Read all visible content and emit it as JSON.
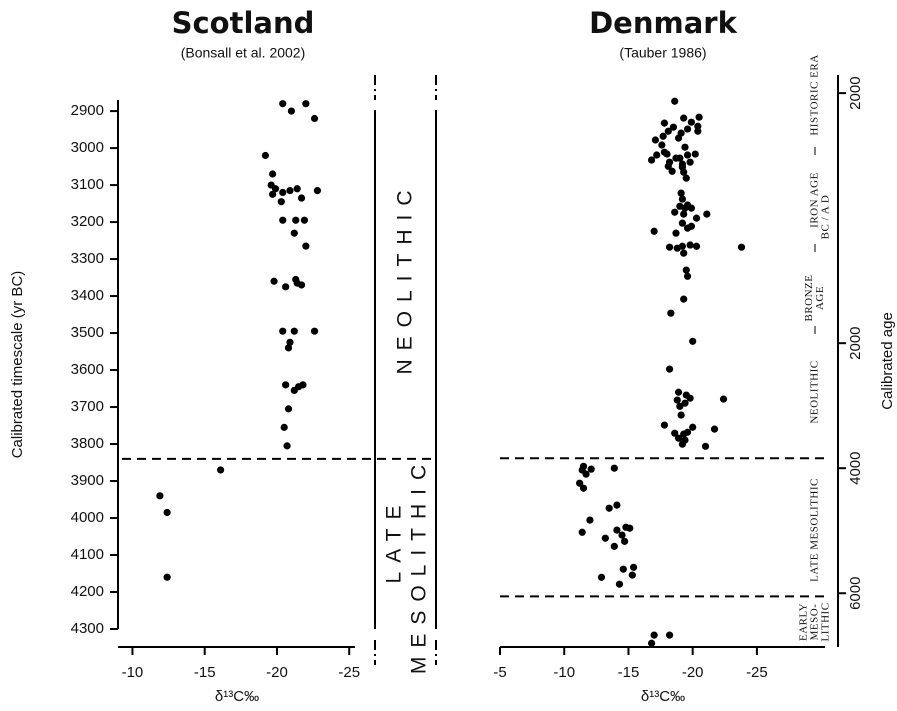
{
  "chart_data": [
    {
      "type": "scatter",
      "title": "Scotland",
      "subtitle": "(Bonsall et al. 2002)",
      "xlabel": "δ¹³C‰",
      "ylabel": "Calibrated timescale (yr BC)",
      "color": "#000",
      "xlim": [
        -9,
        -25.4
      ],
      "xticks": [
        -10,
        -15,
        -20,
        -25
      ],
      "ylim": [
        4300,
        2870
      ],
      "yticks": [
        2900,
        3000,
        3100,
        3200,
        3300,
        3400,
        3500,
        3600,
        3700,
        3800,
        3900,
        4000,
        4100,
        4200,
        4300
      ],
      "boundaries": [
        3840
      ],
      "zone_labels": [
        "NEOLITHIC",
        "LATE",
        "MESOLITHIC"
      ],
      "x": [
        -20.4,
        -21.0,
        -22.0,
        -22.6,
        -19.2,
        -19.7,
        -19.6,
        -19.9,
        -19.7,
        -20.4,
        -20.9,
        -21.4,
        -22.8,
        -20.3,
        -21.7,
        -20.4,
        -21.3,
        -21.9,
        -21.2,
        -22.0,
        -19.8,
        -20.6,
        -21.3,
        -21.4,
        -21.7,
        -20.4,
        -21.2,
        -22.6,
        -20.9,
        -20.8,
        -20.6,
        -21.5,
        -21.8,
        -21.2,
        -20.8,
        -20.5,
        -20.7,
        -16.1,
        -11.9,
        -12.4,
        -12.4
      ],
      "values": [
        2880,
        2900,
        2880,
        2920,
        3020,
        3070,
        3100,
        3110,
        3125,
        3120,
        3115,
        3110,
        3115,
        3145,
        3135,
        3195,
        3195,
        3195,
        3230,
        3265,
        3360,
        3375,
        3355,
        3365,
        3370,
        3495,
        3495,
        3495,
        3525,
        3540,
        3640,
        3645,
        3640,
        3655,
        3705,
        3755,
        3805,
        3870,
        3940,
        3985,
        4160
      ]
    },
    {
      "type": "scatter",
      "title": "Denmark",
      "subtitle": "(Tauber 1986)",
      "xlabel": "δ¹³C‰",
      "ylabel": "Calibrated age",
      "era_label": "BC / A D",
      "color": "#000",
      "xlim": [
        -5,
        -30.3
      ],
      "xticks": [
        -5,
        -10,
        -15,
        -20,
        -25
      ],
      "ylim": [
        6860,
        -2290
      ],
      "yticks": [
        {
          "value": -2000,
          "label": "2000"
        },
        2000,
        4000,
        6000
      ],
      "boundaries": [
        3840,
        6050
      ],
      "periods": [
        [
          "HISTORIC ERA"
        ],
        [
          "IRON AGE"
        ],
        [
          "BRONZE",
          "AGE"
        ],
        [
          "NEOLITHIC"
        ],
        [
          "LATE MESOLITHIC"
        ],
        [
          "EARLY",
          "MESO-",
          "LITHIC"
        ]
      ],
      "x": [
        -18.6,
        -19.3,
        -20.5,
        -19.9,
        -17.8,
        -18.5,
        -18.1,
        -17.7,
        -20.4,
        -19.6,
        -19.1,
        -18.9,
        -17.1,
        -17.6,
        -20.4,
        -19.4,
        -19.0,
        -17.8,
        -17.2,
        -18.0,
        -19.6,
        -20.2,
        -18.7,
        -18.2,
        -19.2,
        -16.8,
        -18.1,
        -19.8,
        -19.2,
        -18.4,
        -19.3,
        -19.5,
        -19.1,
        -19.2,
        -19.6,
        -19.0,
        -19.4,
        -18.6,
        -19.9,
        -19.3,
        -21.1,
        -20.3,
        -19.2,
        -17.0,
        -19.9,
        -19.6,
        -18.7,
        -19.2,
        -19.8,
        -20.3,
        -18.8,
        -19.3,
        -18.2,
        -23.8,
        -19.5,
        -19.6,
        -19.3,
        -18.3,
        -20.0,
        -18.2,
        -18.9,
        -19.5,
        -19.8,
        -18.8,
        -19.4,
        -19.0,
        -22.4,
        -20.0,
        -21.7,
        -17.8,
        -19.1,
        -18.6,
        -19.3,
        -19.6,
        -18.9,
        -19.4,
        -19.2,
        -21.0,
        -11.5,
        -11.4,
        -12.1,
        -13.9,
        -11.7,
        -11.2,
        -11.5,
        -14.1,
        -13.5,
        -12.0,
        -11.4,
        -14.1,
        -14.5,
        -14.8,
        -15.1,
        -13.2,
        -14.7,
        -13.9,
        -15.4,
        -14.6,
        -12.9,
        -15.3,
        -14.3,
        -16.8,
        -17.0,
        -18.2
      ],
      "values": [
        -1870,
        -1600,
        -1615,
        -1535,
        -1520,
        -1455,
        -1390,
        -1310,
        -1470,
        -1425,
        -1360,
        -1280,
        -1250,
        -1170,
        -1390,
        -1135,
        -960,
        -1055,
        -1010,
        -1025,
        -1010,
        -1025,
        -960,
        -895,
        -865,
        -930,
        -830,
        -895,
        -815,
        -750,
        -735,
        -640,
        -400,
        -305,
        -210,
        -190,
        -160,
        -95,
        -160,
        -65,
        -65,
        0,
        80,
        210,
        130,
        160,
        240,
        450,
        430,
        450,
        480,
        560,
        465,
        465,
        830,
        930,
        1295,
        1520,
        1970,
        2415,
        2785,
        2830,
        2880,
        2910,
        2960,
        3010,
        2895,
        3345,
        3375,
        3310,
        3150,
        3440,
        3455,
        3425,
        3520,
        3550,
        3615,
        3650,
        3970,
        4030,
        4015,
        4000,
        4095,
        4240,
        4320,
        4590,
        4640,
        4830,
        5025,
        4990,
        5070,
        4945,
        4960,
        5120,
        5170,
        5250,
        5585,
        5615,
        5745,
        5710,
        5855,
        6800,
        6670,
        6670
      ]
    }
  ]
}
